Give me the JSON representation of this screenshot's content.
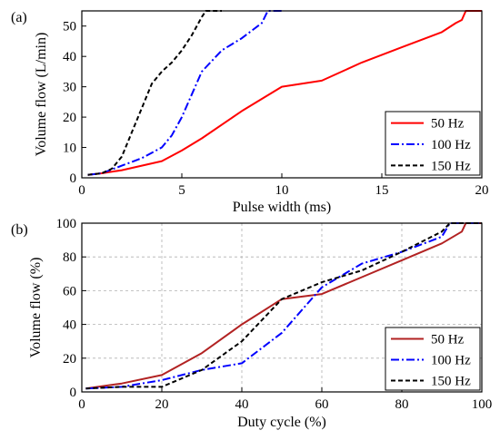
{
  "panels": [
    {
      "label": "(a)",
      "chart_data": {
        "type": "line",
        "xlabel": "Pulse width (ms)",
        "ylabel": "Volume flow (L/min)",
        "xlim": [
          0,
          20
        ],
        "ylim": [
          0,
          55
        ],
        "xticks": [
          0,
          5,
          10,
          15,
          20
        ],
        "yticks": [
          0,
          10,
          20,
          30,
          40,
          50
        ],
        "grid": false,
        "legend": "bottom-right",
        "series": [
          {
            "name": "50 Hz",
            "color": "#ff0000",
            "dash": "solid",
            "points": [
              [
                0.3,
                1
              ],
              [
                1,
                1.5
              ],
              [
                2,
                2.5
              ],
              [
                3,
                4
              ],
              [
                4,
                5.5
              ],
              [
                5,
                9
              ],
              [
                6,
                13
              ],
              [
                8,
                22
              ],
              [
                10,
                30
              ],
              [
                12,
                32
              ],
              [
                14,
                38
              ],
              [
                16,
                43
              ],
              [
                18,
                48
              ],
              [
                18.7,
                51
              ],
              [
                19,
                52
              ],
              [
                19.2,
                55
              ],
              [
                20,
                55
              ]
            ]
          },
          {
            "name": "100 Hz",
            "color": "#0000ff",
            "dash": "dashdot",
            "points": [
              [
                0.3,
                1
              ],
              [
                1,
                1.5
              ],
              [
                2,
                4
              ],
              [
                3,
                6.5
              ],
              [
                4,
                10
              ],
              [
                4.5,
                14
              ],
              [
                5,
                20
              ],
              [
                6,
                35
              ],
              [
                7,
                42
              ],
              [
                8,
                46
              ],
              [
                9,
                51
              ],
              [
                9.3,
                55
              ],
              [
                10,
                55
              ]
            ]
          },
          {
            "name": "150 Hz",
            "color": "#000000",
            "dash": "dashed",
            "points": [
              [
                0.3,
                1
              ],
              [
                1,
                1.5
              ],
              [
                1.5,
                3
              ],
              [
                2,
                7
              ],
              [
                2.5,
                15
              ],
              [
                3,
                23
              ],
              [
                3.5,
                31
              ],
              [
                4,
                35
              ],
              [
                4.5,
                38
              ],
              [
                5,
                42
              ],
              [
                5.5,
                47
              ],
              [
                6,
                53
              ],
              [
                6.2,
                55
              ],
              [
                7,
                55
              ]
            ]
          }
        ]
      }
    },
    {
      "label": "(b)",
      "chart_data": {
        "type": "line",
        "xlabel": "Duty cycle (%)",
        "ylabel": "Volume flow (%)",
        "xlim": [
          0,
          100
        ],
        "ylim": [
          0,
          100
        ],
        "xticks": [
          0,
          20,
          40,
          60,
          80,
          100
        ],
        "yticks": [
          0,
          20,
          40,
          60,
          80,
          100
        ],
        "grid": true,
        "legend": "bottom-right",
        "series": [
          {
            "name": "50 Hz",
            "color": "#b22222",
            "dash": "solid",
            "points": [
              [
                1,
                2
              ],
              [
                10,
                5
              ],
              [
                20,
                10
              ],
              [
                30,
                23
              ],
              [
                40,
                40
              ],
              [
                50,
                55
              ],
              [
                60,
                58
              ],
              [
                70,
                68
              ],
              [
                80,
                78
              ],
              [
                90,
                88
              ],
              [
                95,
                95
              ],
              [
                96,
                100
              ],
              [
                100,
                100
              ]
            ]
          },
          {
            "name": "100 Hz",
            "color": "#0000ff",
            "dash": "dashdot",
            "points": [
              [
                1,
                2
              ],
              [
                10,
                3
              ],
              [
                20,
                7
              ],
              [
                30,
                13
              ],
              [
                40,
                17
              ],
              [
                50,
                35
              ],
              [
                60,
                62
              ],
              [
                70,
                76
              ],
              [
                80,
                83
              ],
              [
                90,
                92
              ],
              [
                92,
                100
              ],
              [
                100,
                100
              ]
            ]
          },
          {
            "name": "150 Hz",
            "color": "#000000",
            "dash": "dashed",
            "points": [
              [
                1,
                2
              ],
              [
                10,
                3
              ],
              [
                20,
                3
              ],
              [
                30,
                13
              ],
              [
                40,
                30
              ],
              [
                50,
                55
              ],
              [
                60,
                65
              ],
              [
                70,
                72
              ],
              [
                80,
                83
              ],
              [
                90,
                95
              ],
              [
                92,
                100
              ],
              [
                100,
                100
              ]
            ]
          }
        ]
      }
    }
  ]
}
